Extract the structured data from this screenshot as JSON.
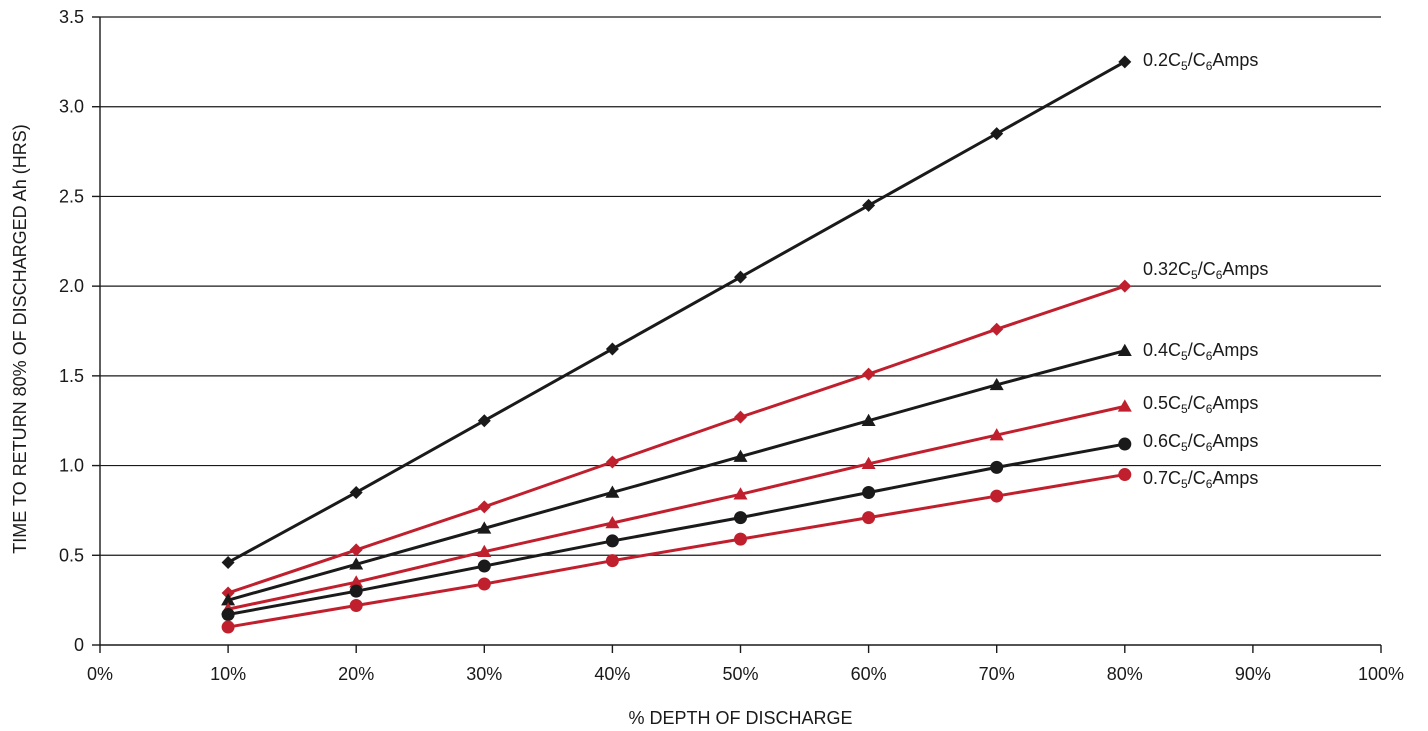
{
  "chart_data": {
    "type": "line",
    "title": "",
    "xlabel": "% DEPTH OF DISCHARGE",
    "ylabel": "TIME TO RETURN 80% OF DISCHARGED Ah (HRS)",
    "xlim": [
      0,
      100
    ],
    "ylim": [
      0,
      3.5
    ],
    "grid": "horizontal",
    "x_ticks": [
      0,
      10,
      20,
      30,
      40,
      50,
      60,
      70,
      80,
      90,
      100
    ],
    "x_tick_labels": [
      "0%",
      "10%",
      "20%",
      "30%",
      "40%",
      "50%",
      "60%",
      "70%",
      "80%",
      "90%",
      "100%"
    ],
    "y_ticks": [
      0,
      0.5,
      1.0,
      1.5,
      2.0,
      2.5,
      3.0,
      3.5
    ],
    "y_tick_labels": [
      "0",
      "0.5",
      "1.0",
      "1.5",
      "2.0",
      "2.5",
      "3.0",
      "3.5"
    ],
    "x": [
      10,
      20,
      30,
      40,
      50,
      60,
      70,
      80
    ],
    "series": [
      {
        "label_parts": [
          "0.2C",
          "5",
          "/C",
          "6",
          "Amps"
        ],
        "color": "#1a1a1a",
        "marker": "diamond",
        "values": [
          0.46,
          0.85,
          1.25,
          1.65,
          2.05,
          2.45,
          2.85,
          3.25
        ]
      },
      {
        "label_parts": [
          "0.32C",
          "5",
          "/C",
          "6",
          "Amps"
        ],
        "color": "#c0202e",
        "marker": "diamond",
        "values": [
          0.29,
          0.53,
          0.77,
          1.02,
          1.27,
          1.51,
          1.76,
          2.0
        ]
      },
      {
        "label_parts": [
          "0.4C",
          "5",
          "/C",
          "6",
          "Amps"
        ],
        "color": "#1a1a1a",
        "marker": "triangle",
        "values": [
          0.25,
          0.45,
          0.65,
          0.85,
          1.05,
          1.25,
          1.45,
          1.64
        ]
      },
      {
        "label_parts": [
          "0.5C",
          "5",
          "/C",
          "6",
          "Amps"
        ],
        "color": "#c0202e",
        "marker": "triangle",
        "values": [
          0.2,
          0.35,
          0.52,
          0.68,
          0.84,
          1.01,
          1.17,
          1.33
        ]
      },
      {
        "label_parts": [
          "0.6C",
          "5",
          "/C",
          "6",
          "Amps"
        ],
        "color": "#1a1a1a",
        "marker": "circle",
        "values": [
          0.17,
          0.3,
          0.44,
          0.58,
          0.71,
          0.85,
          0.99,
          1.12
        ]
      },
      {
        "label_parts": [
          "0.7C",
          "5",
          "/C",
          "6",
          "Amps"
        ],
        "color": "#c0202e",
        "marker": "circle",
        "values": [
          0.1,
          0.22,
          0.34,
          0.47,
          0.59,
          0.71,
          0.83,
          0.95
        ]
      }
    ]
  }
}
